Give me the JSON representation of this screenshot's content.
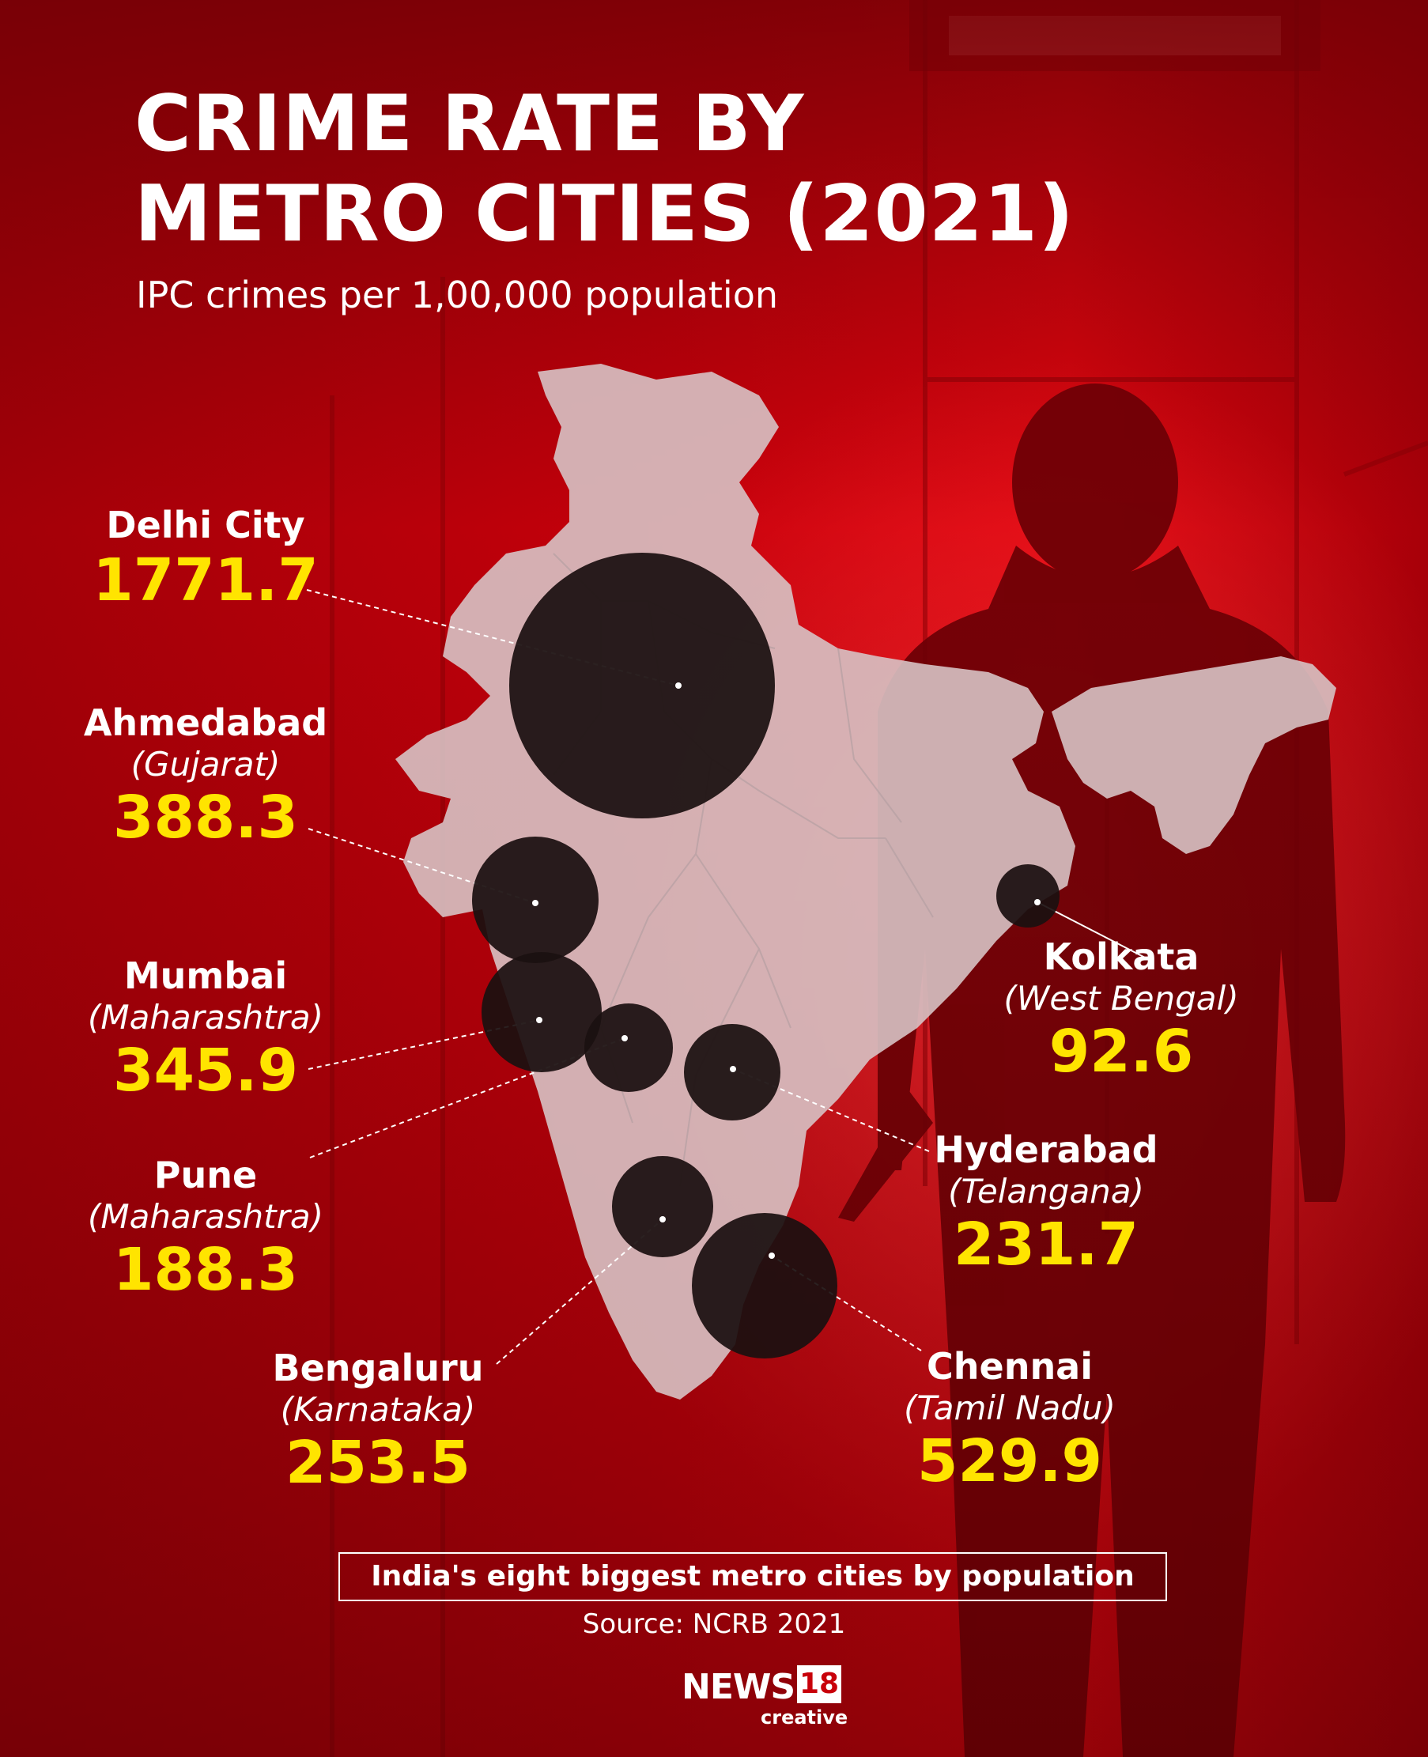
{
  "title_line1": "CRIME RATE BY",
  "title_line2": "METRO CITIES (2021)",
  "subtitle": "IPC crimes per 1,00,000 population",
  "cities": [
    {
      "name": "Delhi City",
      "state": "",
      "value": "1771.7"
    },
    {
      "name": "Ahmedabad",
      "state": "(Gujarat)",
      "value": "388.3"
    },
    {
      "name": "Mumbai",
      "state": "(Maharashtra)",
      "value": "345.9"
    },
    {
      "name": "Pune",
      "state": "(Maharashtra)",
      "value": "188.3"
    },
    {
      "name": "Bengaluru",
      "state": "(Karnataka)",
      "value": "253.5"
    },
    {
      "name": "Chennai",
      "state": "(Tamil Nadu)",
      "value": "529.9"
    },
    {
      "name": "Hyderabad",
      "state": "(Telangana)",
      "value": "231.7"
    },
    {
      "name": "Kolkata",
      "state": "(West Bengal)",
      "value": "92.6"
    }
  ],
  "note": "India's eight biggest metro cities by population",
  "source": "Source: NCRB 2021",
  "logo": {
    "main": "NEWS",
    "number": "18",
    "sub": "creative"
  },
  "colors": {
    "background": "#c8000a",
    "value_text": "#ffe400",
    "bubble": "#1b1010",
    "map": "#d7c2c4"
  }
}
